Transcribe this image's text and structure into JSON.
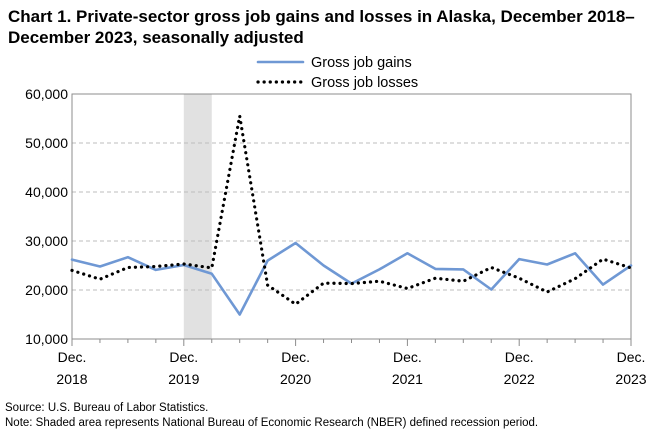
{
  "chart_data": {
    "type": "line",
    "title": "Chart 1. Private-sector gross job gains and losses in Alaska, December 2018–December 2023, seasonally adjusted",
    "xlabel": "",
    "ylabel": "",
    "ylim": [
      10000,
      60000
    ],
    "yticks": [
      "10,000",
      "20,000",
      "30,000",
      "40,000",
      "50,000",
      "60,000"
    ],
    "ytick_values": [
      10000,
      20000,
      30000,
      40000,
      50000,
      60000
    ],
    "x_tick_labels": [
      {
        "month": "Dec.",
        "year": "2018"
      },
      {
        "month": "Dec.",
        "year": "2019"
      },
      {
        "month": "Dec.",
        "year": "2020"
      },
      {
        "month": "Dec.",
        "year": "2021"
      },
      {
        "month": "Dec.",
        "year": "2022"
      },
      {
        "month": "Dec.",
        "year": "2023"
      }
    ],
    "categories": [
      "Dec. 2018",
      "Mar. 2019",
      "Jun. 2019",
      "Sep. 2019",
      "Dec. 2019",
      "Mar. 2020",
      "Jun. 2020",
      "Sep. 2020",
      "Dec. 2020",
      "Mar. 2021",
      "Jun. 2021",
      "Sep. 2021",
      "Dec. 2021",
      "Mar. 2022",
      "Jun. 2022",
      "Sep. 2022",
      "Dec. 2022",
      "Mar. 2023",
      "Jun. 2023",
      "Sep. 2023",
      "Dec. 2023"
    ],
    "recession": {
      "start": "Dec. 2019",
      "end": "Mar. 2020"
    },
    "legend_position": "top-center",
    "grid": true,
    "series": [
      {
        "name": "Gross job gains",
        "color": "#6f98d4",
        "style": "solid",
        "values": [
          26200,
          24800,
          26700,
          24100,
          25100,
          23300,
          15000,
          26000,
          29600,
          25000,
          21300,
          24200,
          27500,
          24300,
          24200,
          20100,
          26300,
          25200,
          27500,
          21100,
          25000
        ]
      },
      {
        "name": "Gross job losses",
        "color": "#000000",
        "style": "dotted",
        "values": [
          24000,
          22200,
          24600,
          24800,
          25300,
          24500,
          55500,
          21000,
          17100,
          21400,
          21300,
          21800,
          20300,
          22400,
          21800,
          24600,
          22400,
          19600,
          22300,
          26300,
          24500
        ]
      }
    ]
  },
  "notes": {
    "source": "Source: U.S. Bureau of Labor Statistics.",
    "note": "Note: Shaded area represents National Bureau of Economic Research (NBER) defined  recession period."
  }
}
